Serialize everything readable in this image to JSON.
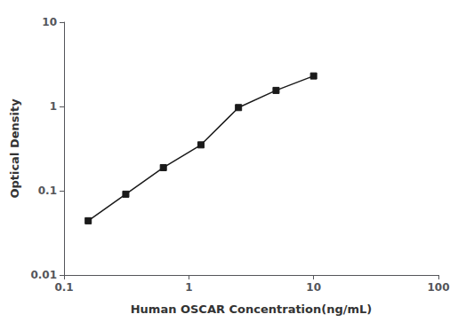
{
  "chart_data": {
    "type": "line",
    "x": [
      0.15625,
      0.3125,
      0.625,
      1.25,
      2.5,
      5.0,
      10.0
    ],
    "values": [
      0.044,
      0.091,
      0.188,
      0.35,
      0.97,
      1.55,
      2.3
    ],
    "xlabel": "Human OSCAR Concentration(ng/mL)",
    "ylabel": "Optical Density",
    "xlim": [
      0.1,
      100
    ],
    "ylim": [
      0.01,
      10
    ],
    "xticks": [
      0.1,
      1,
      10,
      100
    ],
    "yticks": [
      0.01,
      0.1,
      1,
      10
    ],
    "log": true,
    "grid": false,
    "marker": "square",
    "color": "#1a1a1a"
  }
}
